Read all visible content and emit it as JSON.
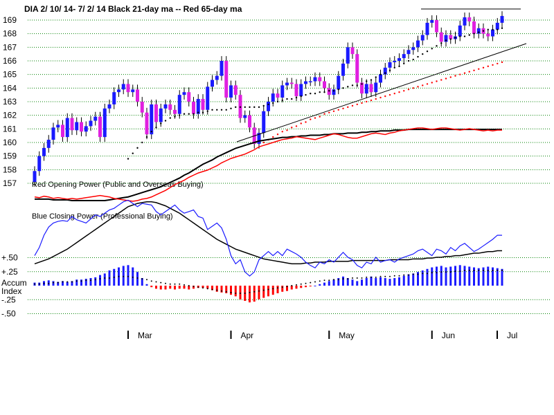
{
  "chart_data": {
    "type": "candlestick",
    "title": "DIA   2/ 10/ 14- 7/ 2/ 14    Black 21-day ma --  Red 65-day ma",
    "colors": {
      "up_candle": "#1a1aff",
      "down_candle": "#e020e0",
      "ma21": "#000000",
      "ma65": "#ff0000",
      "grid": "#008000",
      "accum_positive": "#1a1aff",
      "accum_negative": "#ff0000"
    },
    "price_axis": {
      "ticks": [
        "169",
        "168",
        "167",
        "166",
        "165",
        "164",
        "163",
        "162",
        "161",
        "160",
        "159",
        "158",
        "157"
      ],
      "ylim": [
        157,
        169
      ]
    },
    "months": [
      "Mar",
      "Apr",
      "May",
      "Jun",
      "Jul"
    ],
    "price_series": {
      "name": "DIA close",
      "values": [
        157.9,
        159.0,
        159.6,
        160.2,
        161.1,
        161.3,
        160.4,
        161.8,
        160.9,
        161.5,
        160.8,
        161.2,
        161.6,
        161.9,
        160.4,
        162.5,
        162.8,
        163.7,
        163.9,
        164.3,
        163.7,
        163.9,
        163.0,
        162.2,
        160.6,
        162.8,
        161.5,
        162.5,
        162.8,
        162.4,
        162.1,
        163.5,
        163.7,
        163.0,
        162.1,
        163.2,
        162.4,
        164.1,
        164.6,
        164.9,
        166.0,
        163.3,
        164.2,
        163.5,
        161.8,
        162.0,
        161.1,
        159.9,
        160.7,
        162.3,
        163.0,
        163.6,
        163.3,
        164.2,
        164.4,
        164.3,
        163.4,
        164.3,
        164.5,
        164.5,
        164.8,
        164.5,
        164.0,
        163.5,
        163.9,
        164.9,
        165.8,
        167.0,
        166.5,
        164.4,
        163.6,
        164.3,
        163.7,
        164.4,
        165.0,
        165.5,
        165.9,
        166.0,
        166.2,
        166.5,
        166.8,
        167.0,
        167.5,
        167.9,
        168.8,
        169.0,
        168.1,
        167.4,
        167.9,
        167.6,
        167.8,
        168.6,
        169.2,
        168.9,
        168.0,
        168.4,
        168.0,
        167.8,
        168.3,
        168.8,
        169.3
      ]
    },
    "ma21_series": {
      "values": [
        null,
        null,
        null,
        null,
        null,
        null,
        null,
        null,
        null,
        null,
        null,
        null,
        null,
        null,
        null,
        null,
        null,
        null,
        null,
        null,
        158.8,
        159.2,
        159.6,
        160.0,
        160.4,
        160.8,
        161.1,
        161.4,
        161.6,
        161.8,
        161.9,
        162.0,
        162.1,
        162.1,
        162.1,
        162.2,
        162.2,
        162.3,
        162.4,
        162.4,
        162.4,
        162.4,
        162.5,
        162.6,
        162.6,
        162.6,
        162.6,
        162.6,
        162.6,
        162.7,
        162.8,
        162.9,
        163.0,
        163.1,
        163.2,
        163.2,
        163.3,
        163.4,
        163.5,
        163.6,
        163.6,
        163.7,
        163.7,
        163.8,
        163.8,
        163.9,
        164.0,
        164.1,
        164.2,
        164.2,
        164.3,
        164.5,
        164.6,
        164.8,
        165.0,
        165.1,
        165.3,
        165.5,
        165.6,
        165.8,
        166.0,
        166.1,
        166.3,
        166.5,
        166.7,
        166.9,
        167.1,
        167.3,
        167.5,
        167.6,
        167.7,
        167.8,
        167.8,
        167.9,
        168.0,
        168.1,
        168.2,
        168.3,
        168.3,
        168.3,
        168.4
      ]
    },
    "ma65_series": {
      "values": [
        null,
        null,
        null,
        null,
        null,
        null,
        null,
        null,
        null,
        null,
        null,
        null,
        null,
        null,
        null,
        null,
        null,
        null,
        null,
        null,
        null,
        null,
        null,
        null,
        null,
        null,
        null,
        null,
        null,
        null,
        null,
        null,
        null,
        null,
        null,
        null,
        null,
        null,
        null,
        null,
        null,
        null,
        null,
        null,
        null,
        null,
        null,
        null,
        null,
        160.0,
        160.2,
        160.4,
        160.6,
        160.8,
        160.9,
        161.1,
        161.2,
        161.4,
        161.5,
        161.7,
        161.8,
        161.9,
        162.1,
        162.2,
        162.3,
        162.4,
        162.5,
        162.6,
        162.7,
        162.8,
        162.9,
        163.0,
        163.1,
        163.2,
        163.3,
        163.4,
        163.5,
        163.6,
        163.7,
        163.8,
        163.9,
        164.0,
        164.1,
        164.2,
        164.3,
        164.4,
        164.5,
        164.6,
        164.7,
        164.8,
        164.9,
        165.0,
        165.1,
        165.2,
        165.3,
        165.4,
        165.5,
        165.6,
        165.7,
        165.8,
        165.9
      ]
    },
    "opening_power_panel": {
      "label": "Red Opening Power (Public and Overseas Buying)",
      "red_values": [
        0.05,
        0.04,
        0.06,
        0.05,
        0.03,
        0.04,
        0.03,
        0.02,
        0.03,
        0.02,
        0.03,
        0.04,
        0.05,
        0.06,
        0.07,
        0.06,
        0.05,
        0.03,
        0.02,
        0.01,
        0.0,
        -0.01,
        0.0,
        0.02,
        0.03,
        0.05,
        0.08,
        0.11,
        0.14,
        0.18,
        0.22,
        0.25,
        0.28,
        0.32,
        0.35,
        0.38,
        0.4,
        0.42,
        0.45,
        0.48,
        0.52,
        0.55,
        0.58,
        0.6,
        0.62,
        0.64,
        0.67,
        0.7,
        0.74,
        0.76,
        0.78,
        0.8,
        0.82,
        0.84,
        0.85,
        0.86,
        0.88,
        0.87,
        0.86,
        0.85,
        0.84,
        0.86,
        0.88,
        0.9,
        0.92,
        0.91,
        0.89,
        0.87,
        0.86,
        0.86,
        0.88,
        0.9,
        0.92,
        0.93,
        0.92,
        0.91,
        0.93,
        0.94,
        0.96,
        0.97,
        0.98,
        0.99,
        1.0,
        1.0,
        0.99,
        0.98,
        0.99,
        1.0,
        1.0,
        0.99,
        0.98,
        0.97,
        0.98,
        0.99,
        0.98,
        0.97,
        0.96,
        0.97,
        0.96,
        0.97,
        0.97
      ],
      "black_values": [
        0.02,
        0.02,
        0.02,
        0.02,
        0.01,
        0.01,
        0.01,
        0.01,
        0.0,
        0.0,
        0.0,
        0.0,
        0.0,
        0.0,
        0.0,
        0.0,
        0.01,
        0.02,
        0.03,
        0.04,
        0.05,
        0.07,
        0.09,
        0.11,
        0.13,
        0.15,
        0.17,
        0.19,
        0.22,
        0.25,
        0.28,
        0.31,
        0.35,
        0.38,
        0.42,
        0.46,
        0.5,
        0.53,
        0.56,
        0.6,
        0.63,
        0.66,
        0.69,
        0.72,
        0.74,
        0.76,
        0.78,
        0.8,
        0.82,
        0.83,
        0.84,
        0.85,
        0.86,
        0.87,
        0.87,
        0.88,
        0.88,
        0.89,
        0.89,
        0.9,
        0.9,
        0.9,
        0.91,
        0.91,
        0.92,
        0.92,
        0.92,
        0.93,
        0.93,
        0.93,
        0.94,
        0.94,
        0.95,
        0.95,
        0.96,
        0.96,
        0.96,
        0.97,
        0.97,
        0.97,
        0.98,
        0.98,
        0.98,
        0.98,
        0.98,
        0.98,
        0.98,
        0.98,
        0.98,
        0.98,
        0.98,
        0.98,
        0.98,
        0.98,
        0.98,
        0.98,
        0.98,
        0.98,
        0.98,
        0.98,
        0.98
      ]
    },
    "closing_power_panel": {
      "label": "Blue Closing Power (Professional Buying)",
      "blue_values": [
        0.3,
        0.4,
        0.55,
        0.65,
        0.7,
        0.72,
        0.73,
        0.72,
        0.78,
        0.74,
        0.72,
        0.7,
        0.75,
        0.8,
        0.78,
        0.82,
        0.86,
        0.88,
        0.92,
        0.96,
        0.98,
        0.94,
        0.9,
        0.94,
        0.93,
        0.92,
        0.84,
        0.8,
        0.84,
        0.88,
        0.92,
        0.86,
        0.82,
        0.84,
        0.86,
        0.78,
        0.76,
        0.62,
        0.66,
        0.7,
        0.64,
        0.5,
        0.3,
        0.2,
        0.25,
        0.1,
        0.05,
        0.1,
        0.25,
        0.3,
        0.35,
        0.3,
        0.35,
        0.3,
        0.38,
        0.35,
        0.32,
        0.28,
        0.22,
        0.18,
        0.15,
        0.22,
        0.2,
        0.25,
        0.22,
        0.28,
        0.34,
        0.28,
        0.25,
        0.18,
        0.15,
        0.22,
        0.2,
        0.28,
        0.22,
        0.24,
        0.25,
        0.22,
        0.26,
        0.28,
        0.3,
        0.32,
        0.36,
        0.38,
        0.34,
        0.3,
        0.38,
        0.36,
        0.32,
        0.4,
        0.36,
        0.42,
        0.45,
        0.4,
        0.35,
        0.38,
        0.42,
        0.46,
        0.5,
        0.55,
        0.55
      ],
      "black_values": [
        0.2,
        0.22,
        0.24,
        0.26,
        0.29,
        0.32,
        0.35,
        0.38,
        0.42,
        0.46,
        0.5,
        0.54,
        0.58,
        0.62,
        0.66,
        0.7,
        0.74,
        0.78,
        0.82,
        0.86,
        0.9,
        0.92,
        0.94,
        0.95,
        0.96,
        0.96,
        0.95,
        0.93,
        0.91,
        0.88,
        0.85,
        0.82,
        0.78,
        0.74,
        0.7,
        0.66,
        0.62,
        0.58,
        0.54,
        0.5,
        0.47,
        0.44,
        0.41,
        0.38,
        0.36,
        0.34,
        0.32,
        0.3,
        0.28,
        0.26,
        0.25,
        0.24,
        0.23,
        0.22,
        0.21,
        0.2,
        0.2,
        0.2,
        0.21,
        0.21,
        0.22,
        0.22,
        0.22,
        0.23,
        0.23,
        0.23,
        0.23,
        0.23,
        0.24,
        0.24,
        0.24,
        0.24,
        0.24,
        0.24,
        0.24,
        0.24,
        0.25,
        0.25,
        0.25,
        0.25,
        0.25,
        0.26,
        0.26,
        0.26,
        0.27,
        0.27,
        0.28,
        0.28,
        0.29,
        0.29,
        0.3,
        0.3,
        0.31,
        0.32,
        0.33,
        0.33,
        0.34,
        0.35,
        0.35,
        0.36,
        0.36
      ]
    },
    "accum_index": {
      "label_top": "Accum",
      "label_bottom": "Index",
      "axis_labels": [
        "+.50",
        "+.25",
        "-.25",
        "-.50"
      ],
      "values": [
        0.04,
        0.04,
        0.06,
        0.07,
        0.06,
        0.05,
        0.06,
        0.05,
        0.06,
        0.08,
        0.08,
        0.09,
        0.1,
        0.11,
        0.14,
        0.16,
        0.2,
        0.22,
        0.24,
        0.26,
        0.27,
        0.24,
        0.18,
        0.1,
        0.02,
        -0.02,
        -0.04,
        -0.05,
        -0.05,
        -0.04,
        -0.05,
        -0.04,
        -0.04,
        -0.05,
        -0.04,
        -0.03,
        -0.03,
        -0.04,
        -0.06,
        -0.08,
        -0.09,
        -0.1,
        -0.12,
        -0.14,
        -0.18,
        -0.2,
        -0.22,
        -0.21,
        -0.18,
        -0.16,
        -0.14,
        -0.12,
        -0.1,
        -0.08,
        -0.07,
        -0.05,
        -0.04,
        -0.03,
        -0.02,
        -0.01,
        0.0,
        0.02,
        0.04,
        0.06,
        0.08,
        0.1,
        0.12,
        0.1,
        0.08,
        0.06,
        0.08,
        0.1,
        0.12,
        0.1,
        0.11,
        0.1,
        0.09,
        0.1,
        0.11,
        0.13,
        0.15,
        0.16,
        0.18,
        0.2,
        0.22,
        0.24,
        0.25,
        0.26,
        0.24,
        0.25,
        0.26,
        0.27,
        0.26,
        0.25,
        0.24,
        0.23,
        0.24,
        0.25,
        0.24,
        0.23,
        0.22
      ],
      "dotted_ma_values": [
        0.02,
        0.02,
        0.03,
        0.03,
        0.04,
        0.04,
        0.05,
        0.05,
        0.05,
        0.06,
        0.06,
        0.07,
        0.07,
        0.08,
        0.09,
        0.1,
        0.1,
        0.11,
        0.12,
        0.12,
        0.12,
        0.11,
        0.1,
        0.09,
        0.08,
        0.06,
        0.05,
        0.04,
        0.03,
        0.02,
        0.02,
        0.02,
        0.01,
        0.0,
        -0.01,
        -0.02,
        -0.03,
        -0.04,
        -0.05,
        -0.06,
        -0.07,
        -0.08,
        -0.09,
        -0.1,
        -0.1,
        -0.1,
        -0.09,
        -0.08,
        -0.07,
        -0.06,
        -0.05,
        -0.04,
        -0.03,
        -0.02,
        -0.01,
        0.0,
        0.01,
        0.02,
        0.03,
        0.04,
        0.05,
        0.06,
        0.07,
        0.07,
        0.08,
        0.08,
        0.09,
        0.09,
        0.1,
        0.1,
        0.1,
        0.11,
        0.11,
        0.11,
        0.12,
        0.12,
        0.12,
        0.13,
        0.13,
        0.14,
        0.14,
        0.15,
        0.15,
        0.16,
        0.16,
        0.17,
        0.17,
        0.18,
        0.18,
        0.18,
        0.19,
        0.19,
        0.2,
        0.2,
        0.2,
        0.2,
        0.2,
        0.2,
        0.2,
        0.2,
        0.2
      ]
    }
  }
}
